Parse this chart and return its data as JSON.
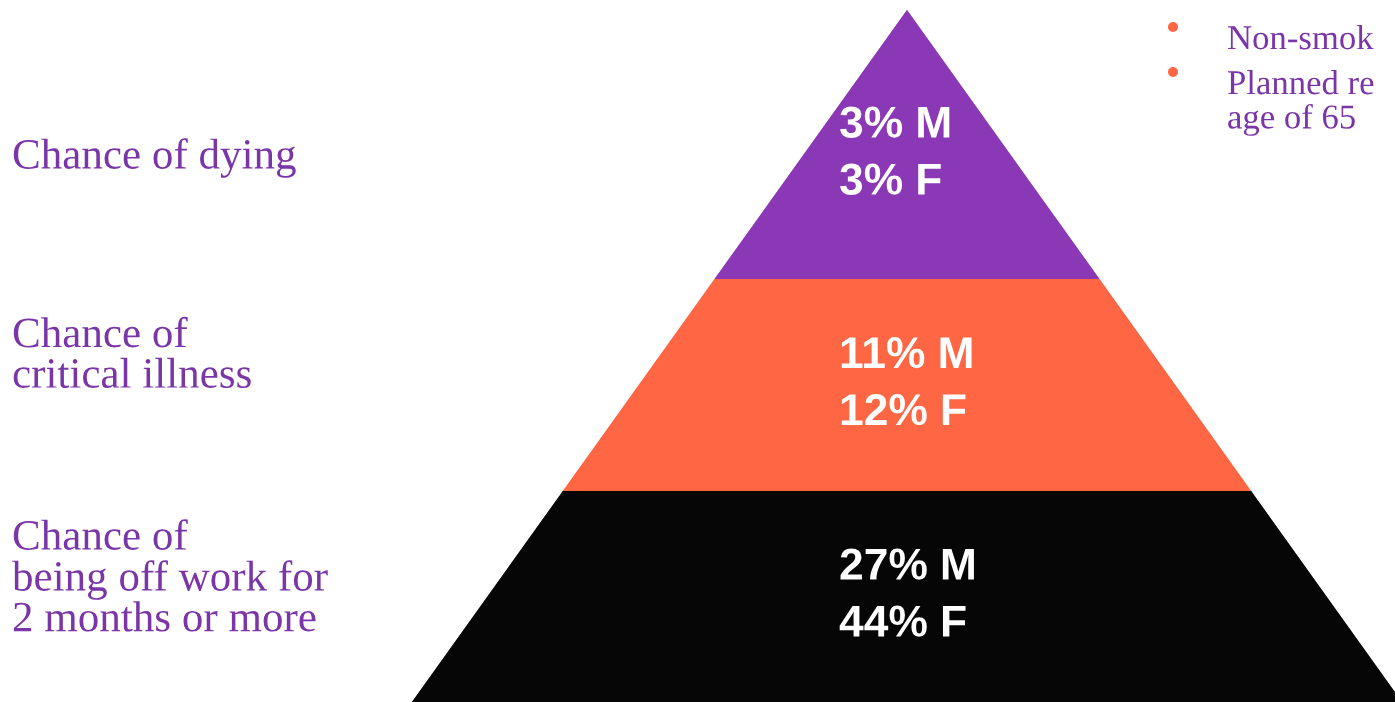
{
  "chart_data": {
    "type": "other",
    "categories": [
      "Chance of dying",
      "Chance of\ncritical illness",
      "Chance of\nbeing off work for\n2 months or more"
    ],
    "colors": [
      "#8a38b6",
      "#ff6643",
      "#060606"
    ],
    "series": [
      {
        "name": "M",
        "colors": [
          "#8a38b6",
          "#ff6643",
          "#060606"
        ],
        "values": [
          3,
          11,
          27
        ],
        "value_labels": [
          "3%",
          "11%",
          "27%"
        ]
      },
      {
        "name": "F",
        "colors": [
          "#8a38b6",
          "#ff6643",
          "#060606"
        ],
        "values": [
          3,
          12,
          44
        ],
        "value_labels": [
          "3%",
          "12%",
          "44%"
        ]
      }
    ],
    "annotations": [
      "Non-smok",
      "Planned re\nage of 65"
    ]
  }
}
